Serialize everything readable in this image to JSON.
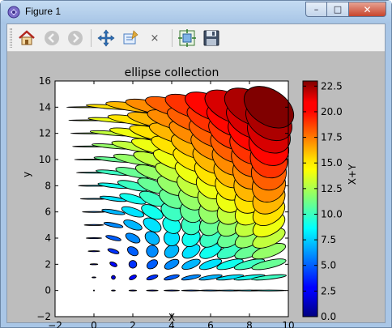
{
  "window": {
    "title": "Figure 1",
    "controls": {
      "minimize": "–",
      "maximize": "□",
      "close": "✕"
    }
  },
  "toolbar": {
    "buttons": [
      {
        "name": "home",
        "icon": "home-icon",
        "enabled": true
      },
      {
        "name": "back",
        "icon": "arrow-left-icon",
        "enabled": false
      },
      {
        "name": "forward",
        "icon": "arrow-right-icon",
        "enabled": false
      },
      {
        "name": "pan",
        "icon": "move-arrows-icon",
        "enabled": true
      },
      {
        "name": "zoom",
        "icon": "zoom-rect-icon",
        "enabled": true
      },
      {
        "name": "clear",
        "icon": "x-icon",
        "enabled": true
      },
      {
        "name": "subplots",
        "icon": "subplots-icon",
        "enabled": true
      },
      {
        "name": "save",
        "icon": "floppy-disk-icon",
        "enabled": true
      }
    ],
    "close_glyph": "×"
  },
  "chart_data": {
    "type": "scatter",
    "title": "ellipse collection",
    "xlabel": "X",
    "ylabel": "y",
    "xlim": [
      -2,
      10
    ],
    "ylim": [
      -2,
      16
    ],
    "xticks": [
      -2,
      0,
      2,
      4,
      6,
      8,
      10
    ],
    "yticks": [
      -2,
      0,
      2,
      4,
      6,
      8,
      10,
      12,
      14,
      16
    ],
    "x_grid": [
      0,
      1,
      2,
      3,
      4,
      5,
      6,
      7,
      8,
      9
    ],
    "y_grid": [
      0,
      1,
      2,
      3,
      4,
      5,
      6,
      7,
      8,
      9,
      10,
      11,
      12,
      13,
      14
    ],
    "ellipse_width_formula": "X*10 (offset units)",
    "ellipse_height_formula": "Y*10 (offset units)",
    "ellipse_angle_formula": "atan2(Y, X) degrees",
    "color_value": "X+Y",
    "colormap": "jet",
    "grid": false,
    "colorbar": {
      "label": "X+Y",
      "range": [
        0,
        23
      ],
      "ticks": [
        "0.0",
        "2.5",
        "5.0",
        "7.5",
        "10.0",
        "12.5",
        "15.0",
        "17.5",
        "20.0",
        "22.5"
      ]
    }
  }
}
